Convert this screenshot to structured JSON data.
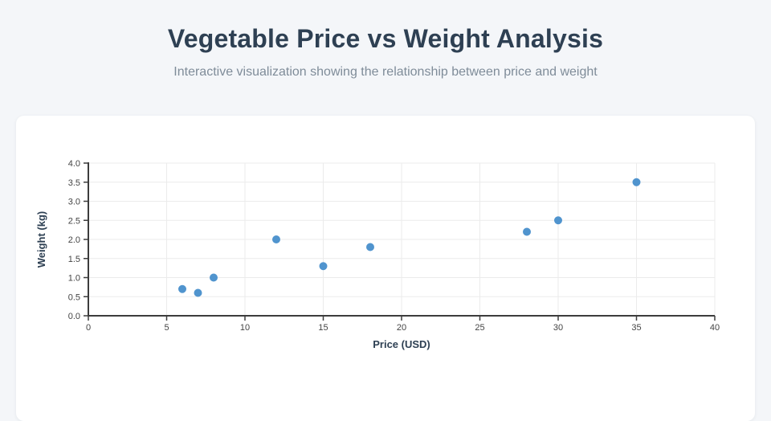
{
  "page": {
    "title": "Vegetable Price vs Weight Analysis",
    "subtitle": "Interactive visualization showing the relationship between price and weight"
  },
  "colors": {
    "page_bg": "#f4f6f9",
    "card_bg": "#ffffff",
    "heading": "#2e4053",
    "subtitle": "#7f8c99",
    "marker": "#5094ce",
    "axis_line": "#3c3c3c",
    "tick_label": "#444444",
    "axis_label": "#2e4053",
    "gridline": "#ebebeb"
  },
  "chart_data": {
    "type": "scatter",
    "title": "",
    "xlabel": "Price (USD)",
    "ylabel": "Weight (kg)",
    "xlim": [
      0,
      40
    ],
    "ylim": [
      0,
      4
    ],
    "x_ticks": [
      "0",
      "5",
      "10",
      "15",
      "20",
      "25",
      "30",
      "35",
      "40"
    ],
    "y_ticks": [
      "0.0",
      "0.5",
      "1.0",
      "1.5",
      "2.0",
      "2.5",
      "3.0",
      "3.5",
      "4.0"
    ],
    "grid": true,
    "legend_position": "none",
    "marker_radius": 5,
    "points": [
      {
        "x": 6,
        "y": 0.7
      },
      {
        "x": 7,
        "y": 0.6
      },
      {
        "x": 8,
        "y": 1.0
      },
      {
        "x": 12,
        "y": 2.0
      },
      {
        "x": 15,
        "y": 1.3
      },
      {
        "x": 18,
        "y": 1.8
      },
      {
        "x": 28,
        "y": 2.2
      },
      {
        "x": 30,
        "y": 2.5
      },
      {
        "x": 35,
        "y": 3.5
      }
    ]
  }
}
